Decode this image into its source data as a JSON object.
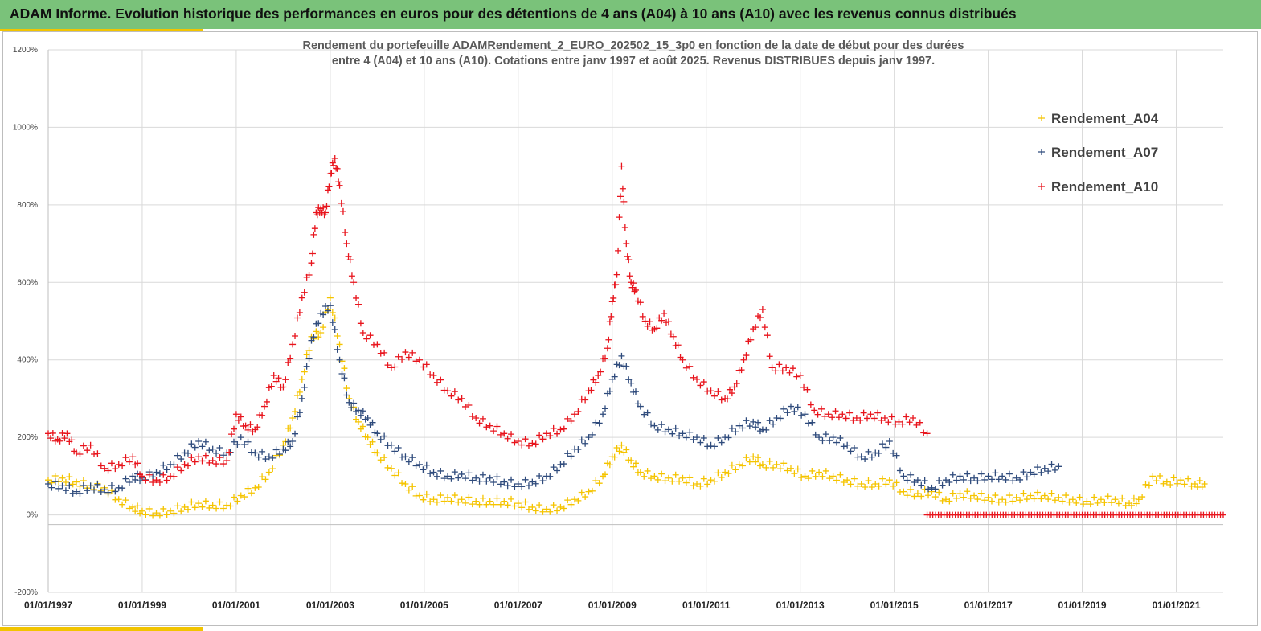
{
  "banner": {
    "title": "ADAM Informe. Evolution historique des performances en euros pour des détentions de 4 ans (A04) à 10 ans (A10) avec les revenus connus distribués"
  },
  "colors": {
    "banner": "#7ac27a",
    "accent": "#f2c400",
    "A04": "#f5c400",
    "A07": "#2f4b7c",
    "A10": "#e8141c"
  },
  "chart_data": {
    "type": "scatter",
    "title_lines": [
      "Rendement du portefeuille ADAMRendement_2_EURO_202502_15_3p0  en fonction de la date de début pour des durées",
      "entre 4 (A04) et 10 ans (A10). Cotations entre janv 1997 et août 2025. Revenus DISTRIBUES depuis janv 1997."
    ],
    "marker": "+",
    "xlim": [
      1997.0,
      2022.0
    ],
    "ylim": [
      -200,
      1200
    ],
    "x_ticks": [
      {
        "v": 1997,
        "label": "01/01/1997"
      },
      {
        "v": 1999,
        "label": "01/01/1999"
      },
      {
        "v": 2001,
        "label": "01/01/2001"
      },
      {
        "v": 2003,
        "label": "01/01/2003"
      },
      {
        "v": 2005,
        "label": "01/01/2005"
      },
      {
        "v": 2007,
        "label": "01/01/2007"
      },
      {
        "v": 2009,
        "label": "01/01/2009"
      },
      {
        "v": 2011,
        "label": "01/01/2011"
      },
      {
        "v": 2013,
        "label": "01/01/2013"
      },
      {
        "v": 2015,
        "label": "01/01/2015"
      },
      {
        "v": 2017,
        "label": "01/01/2017"
      },
      {
        "v": 2019,
        "label": "01/01/2019"
      },
      {
        "v": 2021,
        "label": "01/01/2021"
      }
    ],
    "y_ticks": [
      {
        "v": 1200,
        "label": "1200%"
      },
      {
        "v": 1000,
        "label": "1000%"
      },
      {
        "v": 800,
        "label": "800%"
      },
      {
        "v": 600,
        "label": "600%"
      },
      {
        "v": 400,
        "label": "400%"
      },
      {
        "v": 200,
        "label": "200%"
      },
      {
        "v": 0,
        "label": "0%"
      },
      {
        "v": -200,
        "label": "-200%"
      }
    ],
    "legend": {
      "position": "top-right",
      "items": [
        "Rendement_A04",
        "Rendement_A07",
        "Rendement_A10"
      ]
    },
    "series": [
      {
        "name": "Rendement_A04",
        "color": "#f5c400",
        "x": [
          1997.0,
          1997.3,
          1997.6,
          1997.9,
          1998.2,
          1998.5,
          1998.8,
          1999.0,
          1999.3,
          1999.6,
          1999.9,
          2000.2,
          2000.5,
          2000.8,
          2001.1,
          2001.4,
          2001.7,
          2002.0,
          2002.2,
          2002.4,
          2002.6,
          2002.8,
          2003.0,
          2003.2,
          2003.4,
          2003.6,
          2003.8,
          2004.0,
          2004.3,
          2004.6,
          2004.9,
          2005.2,
          2005.5,
          2005.8,
          2006.1,
          2006.4,
          2006.7,
          2007.0,
          2007.3,
          2007.6,
          2007.9,
          2008.2,
          2008.5,
          2008.8,
          2009.0,
          2009.2,
          2009.4,
          2009.6,
          2009.9,
          2010.2,
          2010.5,
          2010.8,
          2011.1,
          2011.4,
          2011.7,
          2012.0,
          2012.2,
          2012.5,
          2012.8,
          2013.1,
          2013.4,
          2013.7,
          2014.0,
          2014.3,
          2014.6,
          2014.9,
          2015.2,
          2015.5,
          2015.8,
          2016.1,
          2016.4,
          2016.7,
          2017.0,
          2017.3,
          2017.6,
          2017.9,
          2018.2,
          2018.5,
          2018.8,
          2019.1,
          2019.4,
          2019.7,
          2020.0,
          2020.2,
          2020.5,
          2020.8,
          2021.1,
          2021.4,
          2021.6
        ],
        "y": [
          90,
          95,
          85,
          75,
          70,
          40,
          20,
          10,
          5,
          10,
          20,
          30,
          25,
          25,
          50,
          70,
          110,
          180,
          250,
          350,
          460,
          470,
          560,
          440,
          300,
          240,
          200,
          160,
          120,
          80,
          50,
          40,
          45,
          40,
          35,
          35,
          35,
          30,
          20,
          15,
          20,
          40,
          60,
          100,
          150,
          180,
          140,
          110,
          100,
          95,
          95,
          80,
          90,
          110,
          130,
          150,
          130,
          130,
          120,
          100,
          110,
          100,
          90,
          80,
          80,
          90,
          60,
          55,
          60,
          40,
          55,
          50,
          45,
          40,
          45,
          50,
          50,
          45,
          40,
          35,
          40,
          40,
          30,
          40,
          100,
          85,
          90,
          80,
          80
        ]
      },
      {
        "name": "Rendement_A07",
        "color": "#2f4b7c",
        "x": [
          1997.0,
          1997.3,
          1997.6,
          1997.9,
          1998.2,
          1998.5,
          1998.8,
          1999.0,
          1999.3,
          1999.6,
          1999.9,
          2000.2,
          2000.5,
          2000.8,
          2001.1,
          2001.4,
          2001.7,
          2002.0,
          2002.2,
          2002.4,
          2002.6,
          2002.8,
          2003.0,
          2003.2,
          2003.4,
          2003.6,
          2003.8,
          2004.0,
          2004.3,
          2004.6,
          2004.9,
          2005.2,
          2005.5,
          2005.8,
          2006.1,
          2006.4,
          2006.7,
          2007.0,
          2007.3,
          2007.6,
          2007.9,
          2008.2,
          2008.5,
          2008.8,
          2009.0,
          2009.2,
          2009.4,
          2009.6,
          2009.9,
          2010.2,
          2010.5,
          2010.8,
          2011.1,
          2011.4,
          2011.7,
          2012.0,
          2012.2,
          2012.5,
          2012.8,
          2013.1,
          2013.4,
          2013.7,
          2014.0,
          2014.3,
          2014.6,
          2014.9,
          2015.2,
          2015.5,
          2015.8,
          2016.1,
          2016.4,
          2016.7,
          2017.0,
          2017.3,
          2017.6,
          2017.9,
          2018.2,
          2018.5
        ],
        "y": [
          80,
          75,
          60,
          75,
          65,
          70,
          100,
          95,
          110,
          130,
          160,
          190,
          170,
          160,
          200,
          160,
          150,
          170,
          190,
          300,
          450,
          520,
          540,
          400,
          290,
          270,
          250,
          210,
          180,
          150,
          130,
          110,
          100,
          105,
          95,
          95,
          85,
          80,
          85,
          100,
          130,
          170,
          200,
          260,
          350,
          410,
          340,
          280,
          230,
          220,
          210,
          200,
          180,
          200,
          230,
          240,
          220,
          250,
          280,
          260,
          200,
          200,
          180,
          150,
          160,
          190,
          100,
          90,
          70,
          90,
          100,
          95,
          100,
          100,
          95,
          110,
          120,
          125
        ]
      },
      {
        "name": "Rendement_A10",
        "color": "#e8141c",
        "x": [
          1997.0,
          1997.2,
          1997.4,
          1997.6,
          1997.9,
          1998.2,
          1998.5,
          1998.8,
          1999.0,
          1999.3,
          1999.6,
          1999.9,
          2000.2,
          2000.5,
          2000.8,
          2001.0,
          2001.2,
          2001.4,
          2001.6,
          2001.8,
          2002.0,
          2002.2,
          2002.4,
          2002.6,
          2002.7,
          2002.8,
          2002.9,
          2003.0,
          2003.1,
          2003.2,
          2003.35,
          2003.5,
          2003.7,
          2004.0,
          2004.3,
          2004.6,
          2004.9,
          2005.2,
          2005.5,
          2005.8,
          2006.1,
          2006.4,
          2006.7,
          2007.0,
          2007.3,
          2007.6,
          2007.9,
          2008.2,
          2008.5,
          2008.7,
          2008.9,
          2009.0,
          2009.1,
          2009.2,
          2009.3,
          2009.4,
          2009.5,
          2009.7,
          2009.9,
          2010.1,
          2010.3,
          2010.5,
          2010.8,
          2011.1,
          2011.4,
          2011.6,
          2011.8,
          2012.0,
          2012.2,
          2012.4,
          2012.7,
          2013.0,
          2013.3,
          2013.6,
          2013.9,
          2014.2,
          2014.5,
          2014.8,
          2015.1,
          2015.4,
          2015.7
        ],
        "y": [
          210,
          195,
          210,
          160,
          180,
          120,
          130,
          150,
          100,
          90,
          100,
          130,
          150,
          140,
          140,
          260,
          230,
          220,
          280,
          360,
          330,
          440,
          560,
          650,
          780,
          790,
          780,
          880,
          920,
          850,
          700,
          600,
          470,
          440,
          380,
          420,
          400,
          360,
          320,
          300,
          250,
          230,
          210,
          190,
          185,
          210,
          220,
          260,
          320,
          360,
          430,
          550,
          620,
          900,
          700,
          600,
          580,
          500,
          480,
          520,
          460,
          400,
          350,
          320,
          300,
          330,
          400,
          480,
          530,
          380,
          380,
          360,
          270,
          260,
          260,
          250,
          260,
          250,
          240,
          250,
          210
        ]
      },
      {
        "name": "",
        "color": "#e8141c",
        "x": [
          2015.7,
          2016.0,
          2016.5,
          2017.0,
          2017.5,
          2018.0,
          2018.5,
          2019.0,
          2019.5,
          2020.0,
          2020.5,
          2021.0,
          2021.5,
          2022.0
        ],
        "y": [
          0,
          0,
          0,
          0,
          0,
          0,
          0,
          0,
          0,
          0,
          0,
          0,
          0,
          0
        ],
        "dense": true
      }
    ]
  }
}
